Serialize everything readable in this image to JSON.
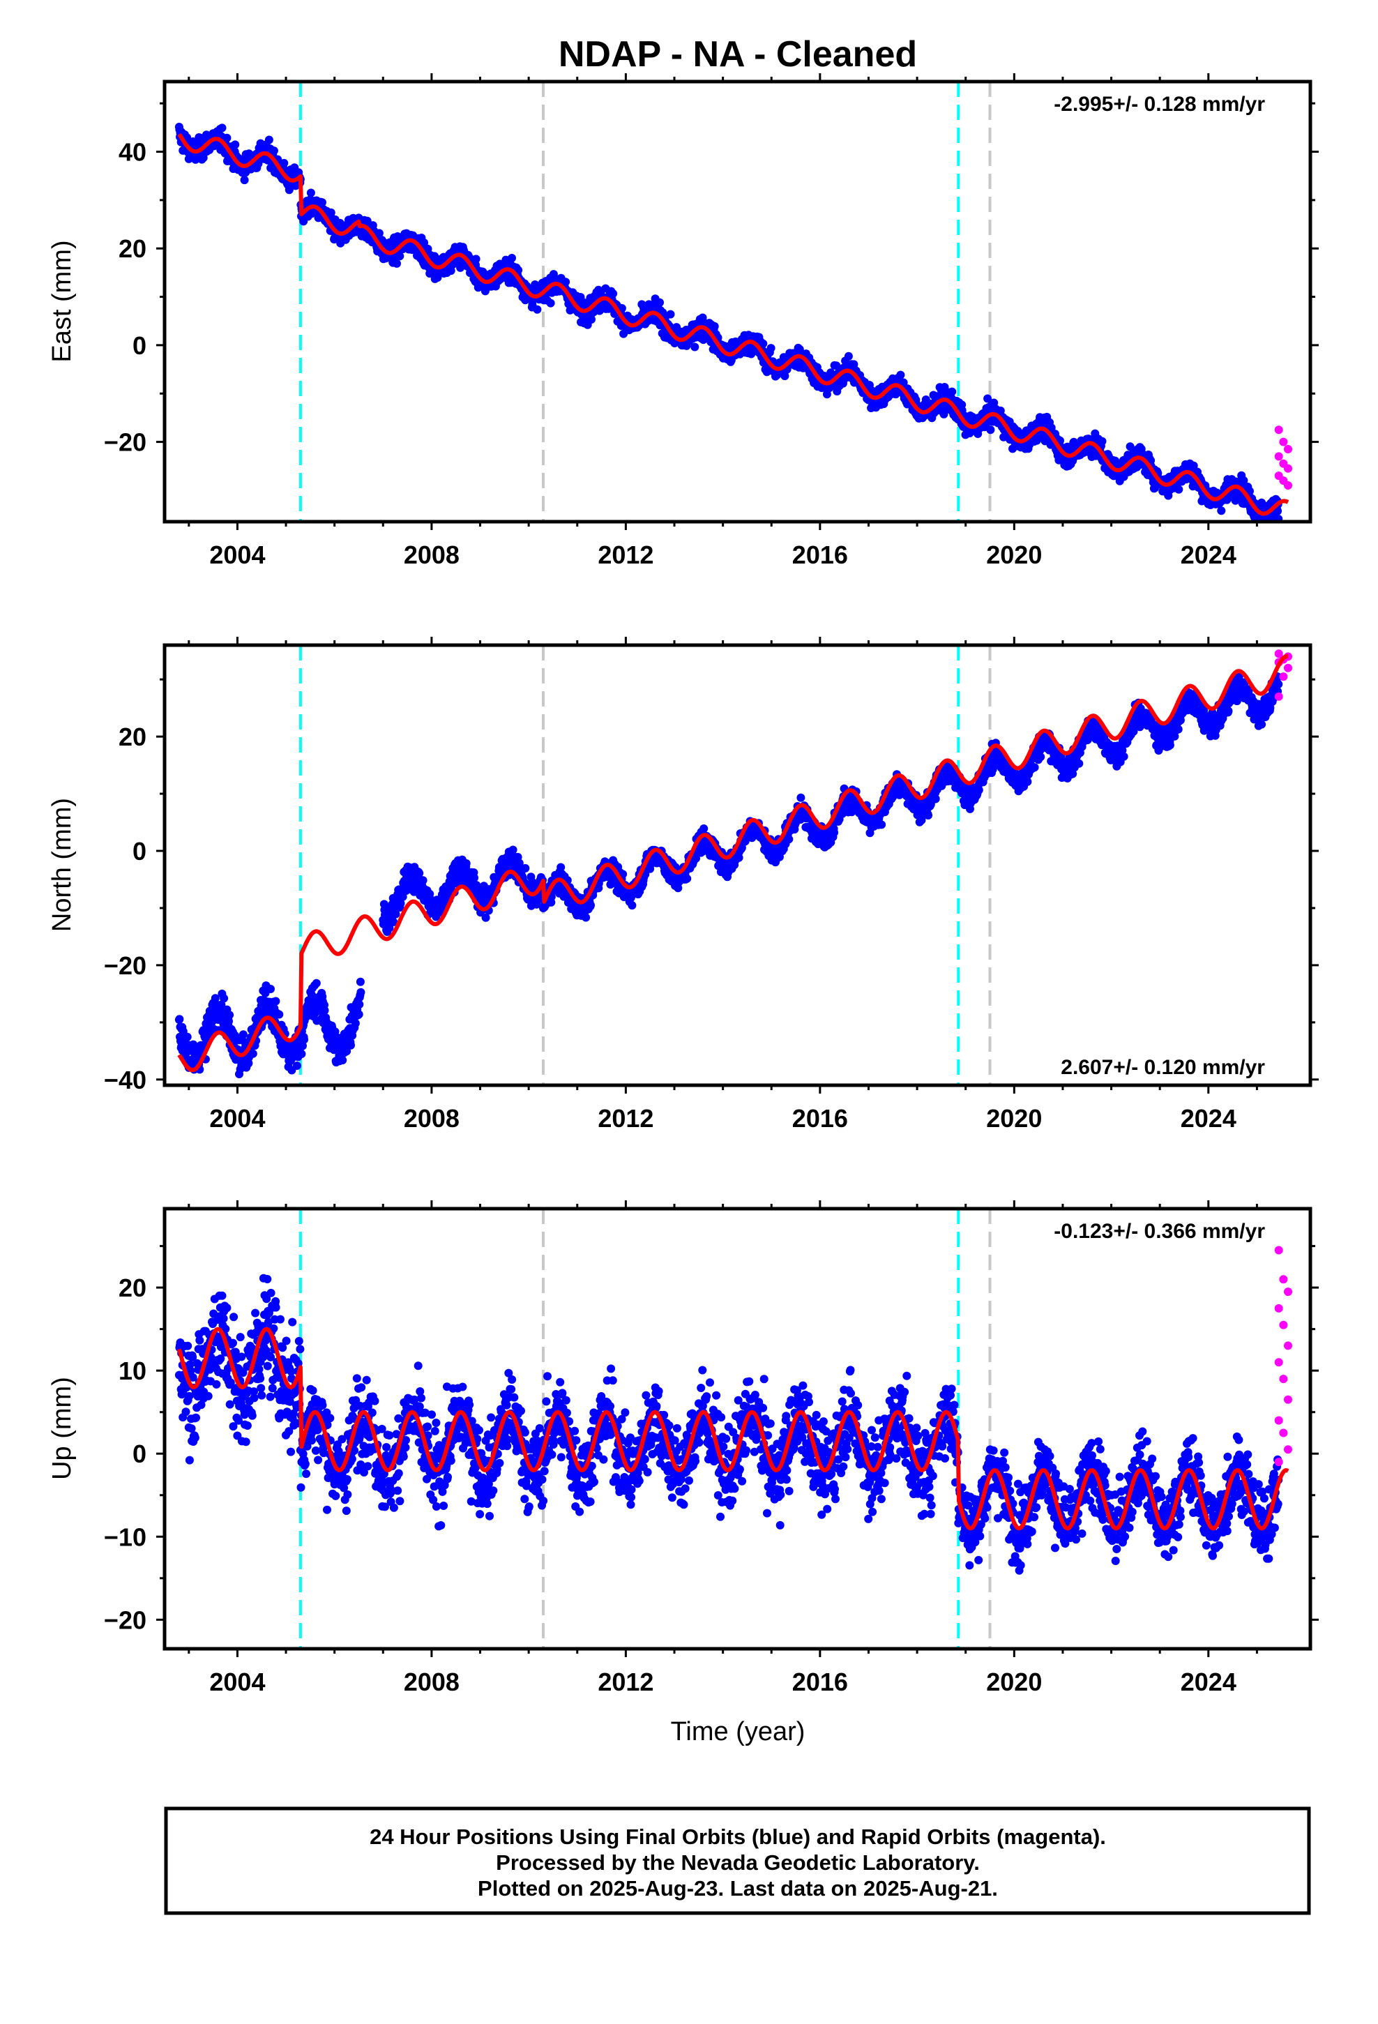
{
  "title": "NDAP  - NA - Cleaned",
  "footer": {
    "line1": "24 Hour Positions Using Final Orbits (blue) and Rapid Orbits (magenta).",
    "line2": "Processed by the Nevada Geodetic Laboratory.",
    "line3": "Plotted on 2025-Aug-23. Last data on 2025-Aug-21."
  },
  "colors": {
    "final_orbits": "#0000ff",
    "rapid_orbits": "#ff00ff",
    "model": "#ff0000",
    "equipment_change": "#00ffff",
    "earthquake": "#c8c8c8"
  },
  "chart_data": [
    {
      "type": "scatter",
      "component": "east",
      "ylabel": "East (mm)",
      "xlabel": "",
      "xlim": [
        2002.5,
        2026.1
      ],
      "ylim": [
        -36.5,
        54.5
      ],
      "xticks": [
        "2004",
        "2008",
        "2012",
        "2016",
        "2020",
        "2024"
      ],
      "yticks": [
        "−20",
        "0",
        "20",
        "40"
      ],
      "rate_text": "-2.995+/- 0.128 mm/yr",
      "rate_position": "top-right",
      "series": [
        {
          "name": "Final Orbits (blue)",
          "color": "#0000ff",
          "start": 2002.8,
          "end": 2025.45,
          "start_value": 43.0,
          "rate": -2.995,
          "annual_amplitude": 2.0,
          "scatter": 1.6
        },
        {
          "name": "Rapid Orbits (magenta)",
          "color": "#ff00ff",
          "start": 2025.45,
          "end": 2025.64,
          "values": [
            -17.5,
            -20.0,
            -21.5,
            -23.0,
            -24.5,
            -25.5,
            -27.0,
            -28.0,
            -29.0
          ]
        }
      ],
      "model": {
        "color": "#ff0000",
        "offsets": [
          [
            2005.3,
            -8.0
          ],
          [
            2006.5,
            -1.0
          ]
        ]
      },
      "vlines": [
        {
          "x": 2005.3,
          "color": "#00ffff"
        },
        {
          "x": 2010.3,
          "color": "#c8c8c8"
        },
        {
          "x": 2018.85,
          "color": "#00ffff"
        },
        {
          "x": 2019.5,
          "color": "#c8c8c8"
        }
      ]
    },
    {
      "type": "scatter",
      "component": "north",
      "ylabel": "North (mm)",
      "xlabel": "",
      "xlim": [
        2002.5,
        2026.1
      ],
      "ylim": [
        -41,
        36
      ],
      "xticks": [
        "2004",
        "2008",
        "2012",
        "2016",
        "2020",
        "2024"
      ],
      "yticks": [
        "−40",
        "−20",
        "0",
        "20"
      ],
      "rate_text": "2.607+/- 0.120 mm/yr",
      "rate_position": "bottom-right",
      "series": [
        {
          "name": "Final Orbits (blue)",
          "color": "#0000ff",
          "segments": [
            {
              "start": 2002.8,
              "end": 2006.55,
              "start_value": -33.0,
              "end_value": -30.0,
              "annual_amplitude": 4.5,
              "scatter": 2.2
            },
            {
              "start": 2007.0,
              "end": 2010.3,
              "start_value": -8.5,
              "end_value": -4.0,
              "annual_amplitude": 3.2,
              "scatter": 1.6
            },
            {
              "start": 2010.3,
              "end": 2025.45,
              "start_value": -9.0,
              "end_value": 28.0,
              "annual_amplitude": 2.8,
              "scatter": 1.4
            }
          ]
        },
        {
          "name": "Rapid Orbits (magenta)",
          "color": "#ff00ff",
          "start": 2025.45,
          "end": 2025.64,
          "values": [
            27.0,
            30.5,
            32.0,
            33.0,
            33.5,
            34.0,
            34.5
          ]
        }
      ],
      "model": {
        "color": "#ff0000",
        "start_value": -36.5,
        "offsets": [
          [
            2005.3,
            12.5
          ],
          [
            2010.3,
            -4.0
          ]
        ]
      },
      "vlines": [
        {
          "x": 2005.3,
          "color": "#00ffff"
        },
        {
          "x": 2010.3,
          "color": "#c8c8c8"
        },
        {
          "x": 2018.85,
          "color": "#00ffff"
        },
        {
          "x": 2019.5,
          "color": "#c8c8c8"
        }
      ]
    },
    {
      "type": "scatter",
      "component": "up",
      "ylabel": "Up (mm)",
      "xlabel": "Time (year)",
      "xlim": [
        2002.5,
        2026.1
      ],
      "ylim": [
        -23.5,
        29.5
      ],
      "xticks": [
        "2004",
        "2008",
        "2012",
        "2016",
        "2020",
        "2024"
      ],
      "yticks": [
        "−20",
        "−10",
        "0",
        "10",
        "20"
      ],
      "rate_text": "-0.123+/- 0.366 mm/yr",
      "rate_position": "top-right",
      "series": [
        {
          "name": "Final Orbits (blue)",
          "color": "#0000ff",
          "segments": [
            {
              "start": 2002.8,
              "end": 2005.3,
              "mean": 11.0,
              "annual_amplitude": 3.5,
              "scatter": 4.5
            },
            {
              "start": 2005.3,
              "end": 2018.85,
              "mean": 1.0,
              "annual_amplitude": 3.5,
              "scatter": 3.5
            },
            {
              "start": 2018.85,
              "end": 2025.45,
              "mean": -5.5,
              "annual_amplitude": 3.5,
              "scatter": 3.0
            }
          ]
        },
        {
          "name": "Rapid Orbits (magenta)",
          "color": "#ff00ff",
          "start": 2025.45,
          "end": 2025.64,
          "values": [
            24.5,
            21.0,
            19.5,
            17.5,
            15.5,
            13.0,
            11.0,
            9.0,
            6.5,
            4.0,
            2.5,
            0.5,
            -1.0
          ]
        }
      ],
      "model": {
        "color": "#ff0000",
        "segments": [
          [
            2002.8,
            2005.3,
            11.5
          ],
          [
            2005.3,
            2018.85,
            1.5
          ],
          [
            2018.85,
            2025.64,
            -5.5
          ]
        ],
        "annual_amplitude": 3.5
      },
      "vlines": [
        {
          "x": 2005.3,
          "color": "#00ffff"
        },
        {
          "x": 2010.3,
          "color": "#c8c8c8"
        },
        {
          "x": 2018.85,
          "color": "#00ffff"
        },
        {
          "x": 2019.5,
          "color": "#c8c8c8"
        }
      ]
    }
  ]
}
